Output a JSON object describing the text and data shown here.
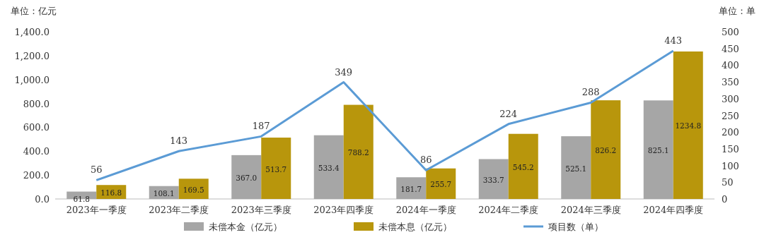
{
  "chart_data": {
    "type": "bar",
    "ylabel": "单位：亿元",
    "y2label": "单位：单",
    "legend": "bottom",
    "categories": [
      "2023年一季度",
      "2023年二季度",
      "2023年三季度",
      "2023年四季度",
      "2024年一季度",
      "2024年二季度",
      "2024年三季度",
      "2024年四季度"
    ],
    "series": [
      {
        "name": "未偿本金（亿元）",
        "color": "#a6a6a6",
        "values": [
          61.8,
          108.1,
          367.0,
          533.4,
          181.7,
          333.7,
          525.1,
          825.1
        ],
        "value_labels": [
          "61.8",
          "108.1",
          "367.0",
          "533.4",
          "181.7",
          "333.7",
          "525.1",
          "825.1"
        ]
      },
      {
        "name": "未偿本息（亿元）",
        "color": "#b8960c",
        "values": [
          116.8,
          169.5,
          513.7,
          788.2,
          255.7,
          545.2,
          826.2,
          1234.8
        ],
        "value_labels": [
          "116.8",
          "169.5",
          "513.7",
          "788.2",
          "255.7",
          "545.2",
          "826.2",
          "1234.8"
        ]
      },
      {
        "name": "项目数（单）",
        "type": "line",
        "axis": "y2",
        "color": "#5b9bd5",
        "values": [
          56,
          143,
          187,
          349,
          86,
          224,
          288,
          443
        ],
        "value_labels": [
          "56",
          "143",
          "187",
          "349",
          "86",
          "224",
          "288",
          "443"
        ]
      }
    ],
    "ylim": [
      0,
      1400
    ],
    "yticks": [
      {
        "value": 0,
        "label": "0.0"
      },
      {
        "value": 200,
        "label": "200.0"
      },
      {
        "value": 400,
        "label": "400.0"
      },
      {
        "value": 600,
        "label": "600.0"
      },
      {
        "value": 800,
        "label": "800.0"
      },
      {
        "value": 1000,
        "label": "1,000.0"
      },
      {
        "value": 1200,
        "label": "1,200.0"
      },
      {
        "value": 1400,
        "label": "1,400.0"
      }
    ],
    "y2lim": [
      0,
      500
    ],
    "y2ticks": [
      0,
      50,
      100,
      150,
      200,
      250,
      300,
      350,
      400,
      450,
      500
    ]
  }
}
